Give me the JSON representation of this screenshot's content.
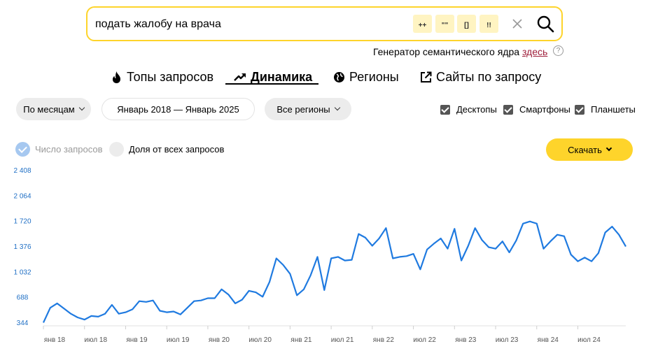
{
  "search": {
    "query": "подать жалобу на врача",
    "operators": [
      "++",
      "\"\"",
      "[]",
      "!!"
    ]
  },
  "generator": {
    "text": "Генератор семантического ядра ",
    "link": "здесь",
    "help": "?"
  },
  "tabs": [
    {
      "label": "Топы запросов",
      "icon": "fire-icon"
    },
    {
      "label": "Динамика",
      "icon": "trend-up-icon",
      "active": true
    },
    {
      "label": "Регионы",
      "icon": "globe-icon"
    },
    {
      "label": "Сайты по запросу",
      "icon": "external-link-icon"
    }
  ],
  "filters": {
    "period": "По месяцам",
    "range": "Январь 2018 — Январь 2025",
    "region": "Все регионы",
    "devices": [
      {
        "label": "Десктопы",
        "checked": true
      },
      {
        "label": "Смартфоны",
        "checked": true
      },
      {
        "label": "Планшеты",
        "checked": true
      }
    ]
  },
  "series_toggles": [
    {
      "label": "Число запросов",
      "on": true
    },
    {
      "label": "Доля от всех запросов",
      "on": false
    }
  ],
  "download": {
    "label": "Скачать"
  },
  "colors": {
    "accent": "#fed42b",
    "line": "#1f7ae0",
    "tick": "#1f6fc5"
  },
  "chart_data": {
    "type": "line",
    "title": "",
    "xlabel": "",
    "ylabel": "",
    "ylim": [
      344,
      2408
    ],
    "yticks": [
      344,
      688,
      1032,
      1376,
      1720,
      2064,
      2408
    ],
    "ytick_labels": [
      "344",
      "688",
      "1 032",
      "1 376",
      "1 720",
      "2 064",
      "2 408"
    ],
    "xtick_labels": [
      "янв 18",
      "июл 18",
      "янв 19",
      "июл 19",
      "янв 20",
      "июл 20",
      "янв 21",
      "июл 21",
      "янв 22",
      "июл 22",
      "янв 23",
      "июл 23",
      "янв 24",
      "июл 24"
    ],
    "grid": false,
    "series": [
      {
        "name": "Число запросов",
        "values": [
          350,
          550,
          610,
          540,
          470,
          420,
          390,
          440,
          430,
          470,
          590,
          470,
          490,
          530,
          640,
          630,
          650,
          510,
          490,
          500,
          460,
          550,
          640,
          650,
          680,
          680,
          800,
          730,
          610,
          660,
          780,
          760,
          700,
          900,
          1220,
          1130,
          1010,
          720,
          800,
          990,
          1240,
          790,
          1220,
          1240,
          1190,
          1200,
          1550,
          1500,
          1390,
          1490,
          1630,
          1220,
          1240,
          1250,
          1280,
          1070,
          1340,
          1420,
          1490,
          1350,
          1620,
          1190,
          1390,
          1630,
          1470,
          1370,
          1350,
          1450,
          1300,
          1460,
          1690,
          1720,
          1690,
          1350,
          1450,
          1540,
          1520,
          1270,
          1180,
          1230,
          1180,
          1290,
          1570,
          1650,
          1540,
          1380
        ]
      }
    ]
  }
}
